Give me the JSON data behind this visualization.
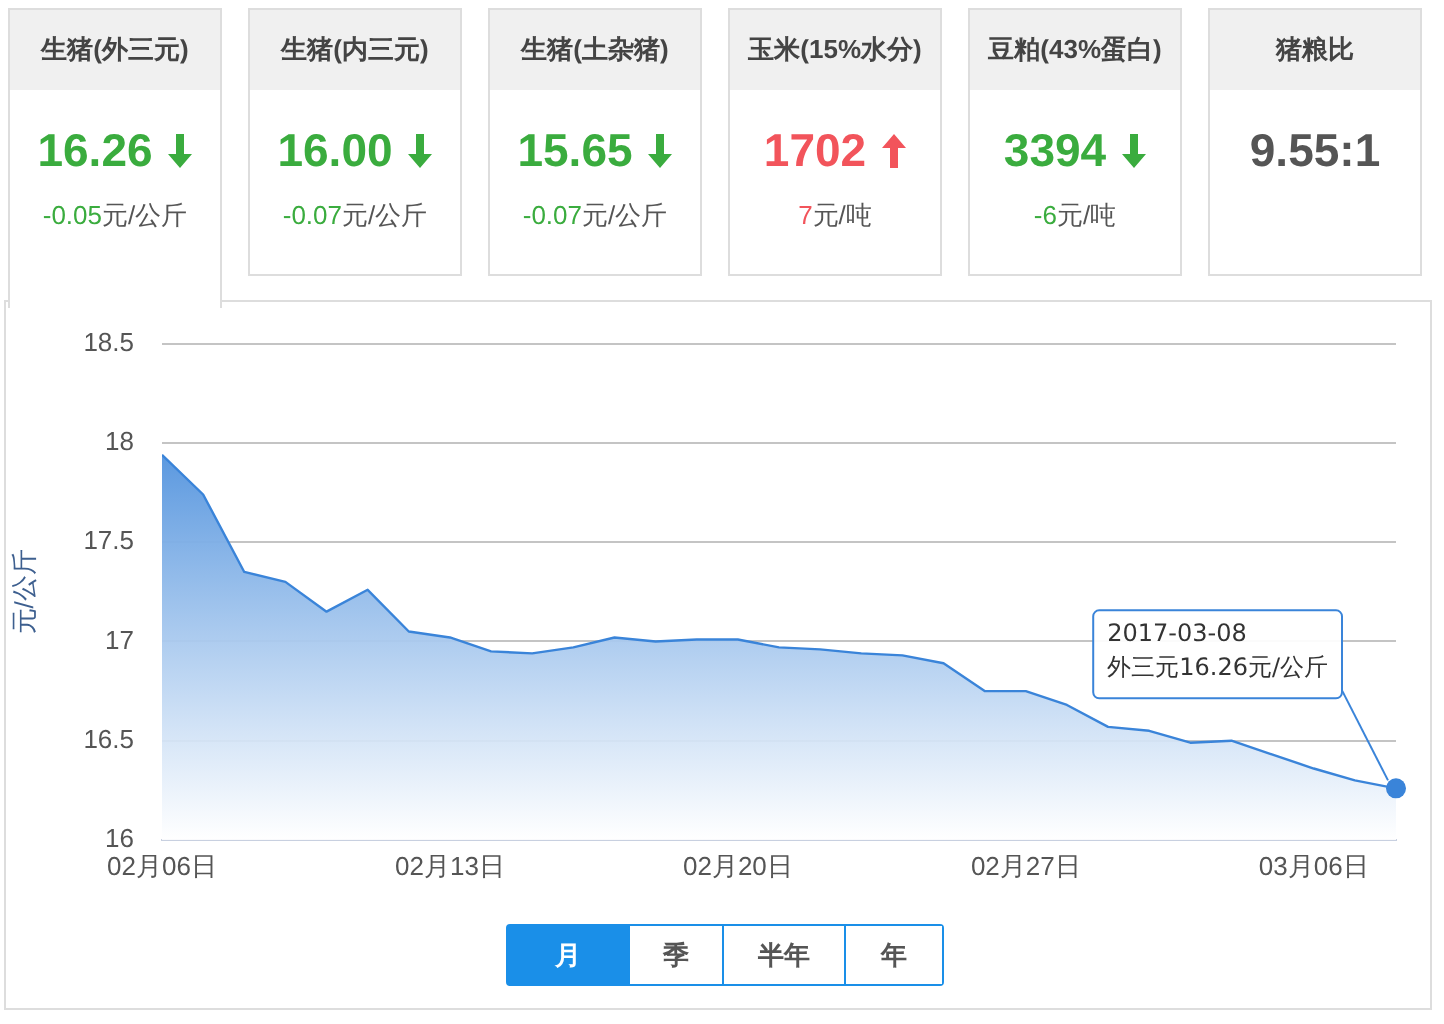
{
  "chart_data": [
    {
      "type": "other",
      "annotations": [
        "生猪(外三元)\n16.26\n-0.05元/公斤",
        "生猪(内三元)\n16.00\n-0.07元/公斤",
        "生猪(土杂猪)\n15.65\n-0.07元/公斤",
        "玉米(15%水分)\n1702\n7元/吨",
        "豆粕(43%蛋白)\n3394\n-6元/吨",
        "猪粮比\n9.55:1"
      ]
    },
    {
      "type": "area",
      "ylabel": "元/公斤",
      "color": "#3a84d9",
      "grid": "y",
      "marker": "none",
      "x": [
        "2017-02-06",
        "2017-02-07",
        "2017-02-08",
        "2017-02-09",
        "2017-02-10",
        "2017-02-11",
        "2017-02-12",
        "2017-02-13",
        "2017-02-14",
        "2017-02-15",
        "2017-02-16",
        "2017-02-17",
        "2017-02-18",
        "2017-02-19",
        "2017-02-20",
        "2017-02-21",
        "2017-02-22",
        "2017-02-23",
        "2017-02-24",
        "2017-02-25",
        "2017-02-26",
        "2017-02-27",
        "2017-02-28",
        "2017-03-01",
        "2017-03-02",
        "2017-03-03",
        "2017-03-04",
        "2017-03-05",
        "2017-03-06",
        "2017-03-07",
        "2017-03-08"
      ],
      "values": [
        17.94,
        17.74,
        17.35,
        17.3,
        17.15,
        17.26,
        17.05,
        17.02,
        16.95,
        16.94,
        16.97,
        17.02,
        17.0,
        17.01,
        17.01,
        16.97,
        16.96,
        16.94,
        16.93,
        16.89,
        16.75,
        16.75,
        16.68,
        16.57,
        16.55,
        16.49,
        16.5,
        16.43,
        16.36,
        16.3,
        16.26
      ],
      "xlim": [
        "2017-02-06",
        "2017-03-08"
      ],
      "xticks": [
        {
          "value": "2017-02-06",
          "label": "02月06日"
        },
        {
          "value": "2017-02-13",
          "label": "02月13日"
        },
        {
          "value": "2017-02-20",
          "label": "02月20日"
        },
        {
          "value": "2017-02-27",
          "label": "02月27日"
        },
        {
          "value": "2017-03-06",
          "label": "03月06日"
        }
      ],
      "ylim": [
        16,
        18.5
      ],
      "yticks": [
        16,
        16.5,
        17,
        17.5,
        18,
        18.5
      ],
      "annotations": [
        {
          "text": "2017-03-08\n外三元16.26元/公斤",
          "x": "2017-03-08",
          "y": 16.26
        },
        "月",
        "季",
        "半年",
        "年"
      ]
    }
  ]
}
